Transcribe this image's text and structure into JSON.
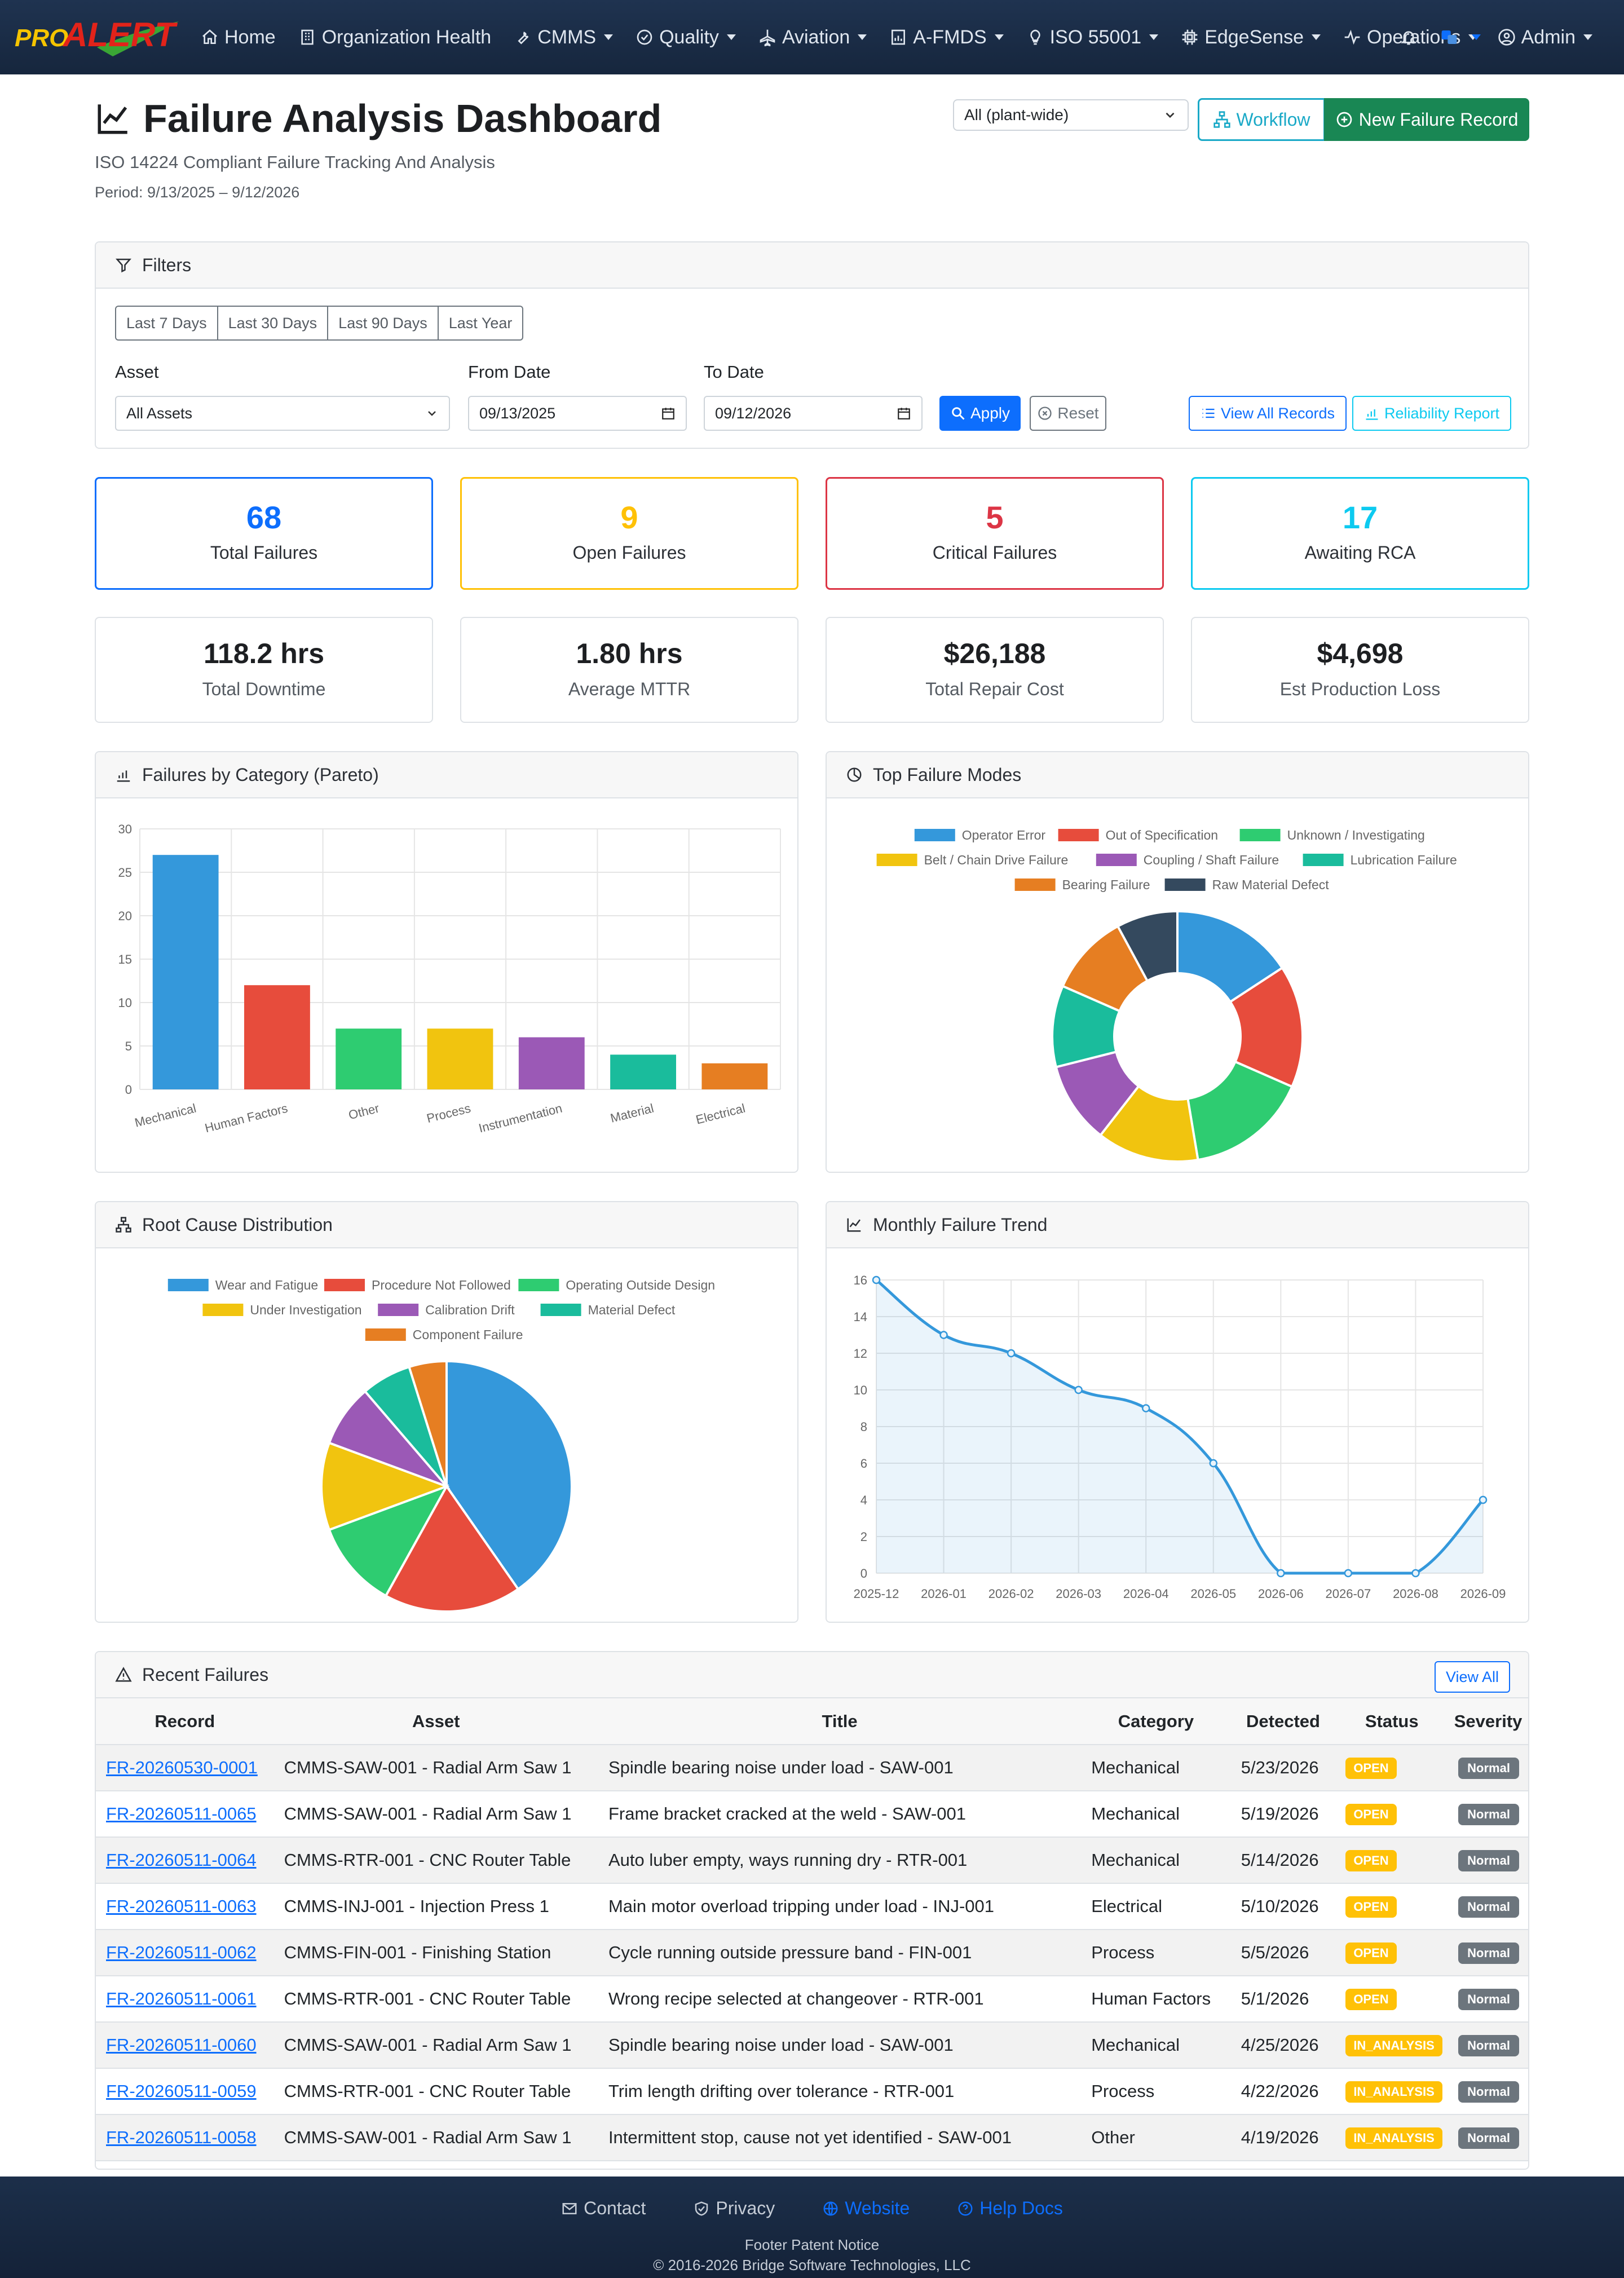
{
  "nav": {
    "logo_text": "PROALERT",
    "items": [
      "Home",
      "Organization Health",
      "CMMS",
      "Quality",
      "Aviation",
      "A-FMDS",
      "ISO 55001",
      "EdgeSense",
      "Operations"
    ],
    "admin_label": "Admin"
  },
  "header": {
    "title": "Failure Analysis Dashboard",
    "subtitle": "ISO 14224 Compliant Failure Tracking And Analysis",
    "period": "Period: 9/13/2025 – 9/12/2026",
    "plant_select": "All (plant-wide)",
    "workflow_label": "Workflow",
    "new_record_label": "New Failure Record"
  },
  "filters": {
    "title": "Filters",
    "ranges": [
      "Last 7 Days",
      "Last 30 Days",
      "Last 90 Days",
      "Last Year"
    ],
    "asset_label": "Asset",
    "asset_value": "All Assets",
    "from_label": "From Date",
    "from_value": "09/13/2025",
    "to_label": "To Date",
    "to_value": "09/12/2026",
    "apply_label": "Apply",
    "reset_label": "Reset",
    "view_all_label": "View All Records",
    "reliability_label": "Reliability Report"
  },
  "stats": [
    {
      "value": "68",
      "label": "Total Failures",
      "color": "#0d6efd"
    },
    {
      "value": "9",
      "label": "Open Failures",
      "color": "#ffc107"
    },
    {
      "value": "5",
      "label": "Critical Failures",
      "color": "#dc3545"
    },
    {
      "value": "17",
      "label": "Awaiting RCA",
      "color": "#0dcaf0"
    }
  ],
  "metrics": [
    {
      "value": "118.2 hrs",
      "label": "Total Downtime"
    },
    {
      "value": "1.80 hrs",
      "label": "Average MTTR"
    },
    {
      "value": "$26,188",
      "label": "Total Repair Cost"
    },
    {
      "value": "$4,698",
      "label": "Est Production Loss"
    }
  ],
  "chart_titles": {
    "pareto": "Failures by Category (Pareto)",
    "modes": "Top Failure Modes",
    "root": "Root Cause Distribution",
    "trend": "Monthly Failure Trend"
  },
  "chart_data": [
    {
      "type": "bar",
      "categories": [
        "Mechanical",
        "Human Factors",
        "Other",
        "Process",
        "Instrumentation",
        "Material",
        "Electrical"
      ],
      "values": [
        27,
        12,
        7,
        7,
        6,
        4,
        3
      ],
      "colors": [
        "#3498db",
        "#e74c3c",
        "#2ecc71",
        "#f1c40f",
        "#9b59b6",
        "#1abc9c",
        "#e67e22"
      ],
      "ylim": [
        0,
        30
      ],
      "yticks": [
        0,
        5,
        10,
        15,
        20,
        25,
        30
      ],
      "grid": true
    },
    {
      "type": "pie",
      "donut": true,
      "labels": [
        "Operator Error",
        "Out of Specification",
        "Unknown / Investigating",
        "Belt / Chain Drive Failure",
        "Coupling / Shaft Failure",
        "Lubrication Failure",
        "Bearing Failure",
        "Raw Material Defect"
      ],
      "values": [
        6,
        6,
        6,
        5,
        4,
        4,
        4,
        3
      ],
      "colors": [
        "#3498db",
        "#e74c3c",
        "#2ecc71",
        "#f1c40f",
        "#9b59b6",
        "#1abc9c",
        "#e67e22",
        "#34495e"
      ],
      "legend": "top"
    },
    {
      "type": "pie",
      "labels": [
        "Wear and Fatigue",
        "Procedure Not Followed",
        "Operating Outside Design",
        "Under Investigation",
        "Calibration Drift",
        "Material Defect",
        "Component Failure"
      ],
      "values": [
        25,
        11,
        7,
        7,
        5,
        4,
        3
      ],
      "colors": [
        "#3498db",
        "#e74c3c",
        "#2ecc71",
        "#f1c40f",
        "#9b59b6",
        "#1abc9c",
        "#e67e22"
      ],
      "legend": "top"
    },
    {
      "type": "area",
      "x": [
        "2025-12",
        "2026-01",
        "2026-02",
        "2026-03",
        "2026-04",
        "2026-05",
        "2026-06",
        "2026-07",
        "2026-08",
        "2026-09"
      ],
      "values": [
        16,
        13,
        12,
        10,
        9,
        6,
        0,
        0,
        0,
        4
      ],
      "ylim": [
        0,
        16
      ],
      "yticks": [
        0,
        2,
        4,
        6,
        8,
        10,
        12,
        14,
        16
      ],
      "color": "#3498db",
      "grid": true
    }
  ],
  "recent": {
    "title": "Recent Failures",
    "view_all_label": "View All",
    "columns": [
      "Record",
      "Asset",
      "Title",
      "Category",
      "Detected",
      "Status",
      "Severity"
    ],
    "rows": [
      [
        "FR-20260530-0001",
        "CMMS-SAW-001 - Radial Arm Saw 1",
        "Spindle bearing noise under load - SAW-001",
        "Mechanical",
        "5/23/2026",
        "OPEN",
        "Normal"
      ],
      [
        "FR-20260511-0065",
        "CMMS-SAW-001 - Radial Arm Saw 1",
        "Frame bracket cracked at the weld - SAW-001",
        "Mechanical",
        "5/19/2026",
        "OPEN",
        "Normal"
      ],
      [
        "FR-20260511-0064",
        "CMMS-RTR-001 - CNC Router Table",
        "Auto luber empty, ways running dry - RTR-001",
        "Mechanical",
        "5/14/2026",
        "OPEN",
        "Normal"
      ],
      [
        "FR-20260511-0063",
        "CMMS-INJ-001 - Injection Press 1",
        "Main motor overload tripping under load - INJ-001",
        "Electrical",
        "5/10/2026",
        "OPEN",
        "Normal"
      ],
      [
        "FR-20260511-0062",
        "CMMS-FIN-001 - Finishing Station",
        "Cycle running outside pressure band - FIN-001",
        "Process",
        "5/5/2026",
        "OPEN",
        "Normal"
      ],
      [
        "FR-20260511-0061",
        "CMMS-RTR-001 - CNC Router Table",
        "Wrong recipe selected at changeover - RTR-001",
        "Human Factors",
        "5/1/2026",
        "OPEN",
        "Normal"
      ],
      [
        "FR-20260511-0060",
        "CMMS-SAW-001 - Radial Arm Saw 1",
        "Spindle bearing noise under load - SAW-001",
        "Mechanical",
        "4/25/2026",
        "IN_ANALYSIS",
        "Normal"
      ],
      [
        "FR-20260511-0059",
        "CMMS-RTR-001 - CNC Router Table",
        "Trim length drifting over tolerance - RTR-001",
        "Process",
        "4/22/2026",
        "IN_ANALYSIS",
        "Normal"
      ],
      [
        "FR-20260511-0058",
        "CMMS-SAW-001 - Radial Arm Saw 1",
        "Intermittent stop, cause not yet identified - SAW-001",
        "Other",
        "4/19/2026",
        "IN_ANALYSIS",
        "Normal"
      ]
    ]
  },
  "footer": {
    "contact": "Contact",
    "privacy": "Privacy",
    "website": "Website",
    "help": "Help Docs",
    "notice": "Footer Patent Notice",
    "copyright": "© 2016-2026 Bridge Software Technologies, LLC"
  }
}
